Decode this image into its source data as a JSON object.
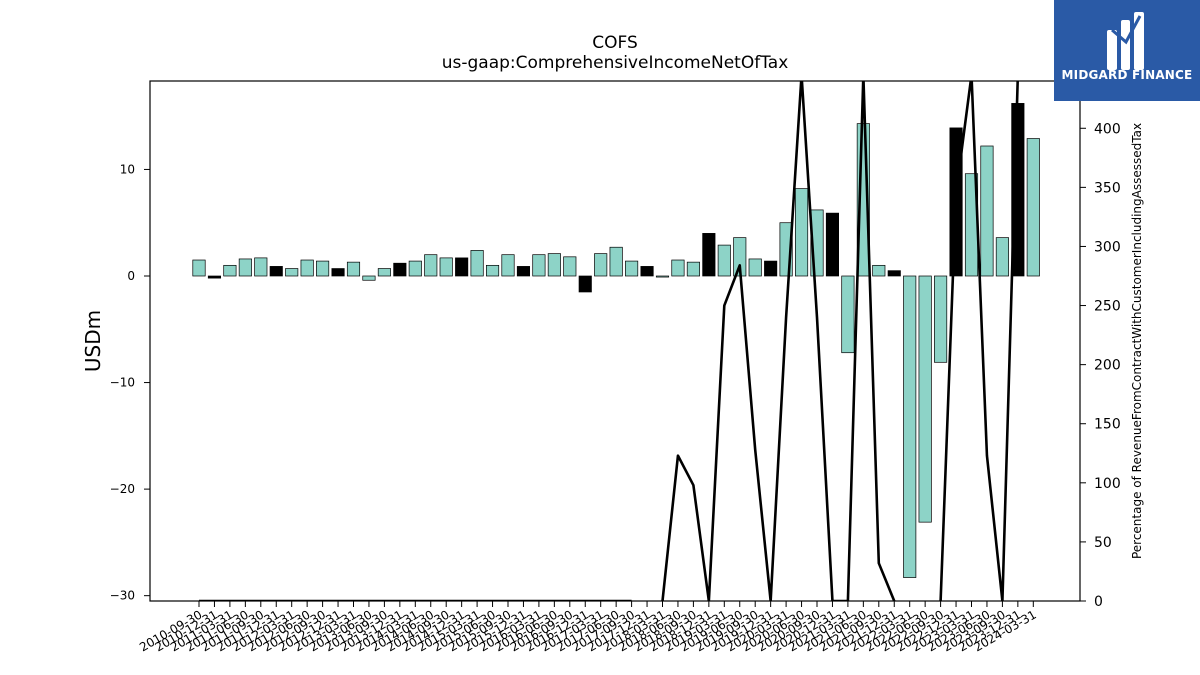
{
  "logo": {
    "text": "MIDGARD FINANCE"
  },
  "chart_data": {
    "type": "bar",
    "title": "COFS",
    "subtitle": "us-gaap:ComprehensiveIncomeNetOfTax",
    "ylabel": "USDm",
    "y2label": "Percentage of RevenueFromContractWithCustomerIncludingAssessedTax",
    "ylim": [
      -30.5,
      18.3
    ],
    "y2lim": [
      0,
      440
    ],
    "yticks": [
      -30,
      -20,
      -10,
      0,
      10
    ],
    "y2ticks": [
      0,
      50,
      100,
      150,
      200,
      250,
      300,
      350,
      400
    ],
    "categories": [
      "2010-09-30",
      "2010-12-31",
      "2011-03-31",
      "2011-06-30",
      "2011-09-30",
      "2011-12-31",
      "2012-03-31",
      "2012-06-30",
      "2012-09-30",
      "2012-12-31",
      "2013-03-31",
      "2013-06-30",
      "2013-09-30",
      "2013-12-31",
      "2014-03-31",
      "2014-06-30",
      "2014-09-30",
      "2014-12-31",
      "2015-03-31",
      "2015-06-30",
      "2015-09-30",
      "2015-12-31",
      "2016-03-31",
      "2016-06-30",
      "2016-09-30",
      "2016-12-31",
      "2017-03-31",
      "2017-06-30",
      "2017-09-30",
      "2017-12-31",
      "2018-03-31",
      "2018-06-30",
      "2018-09-30",
      "2018-12-31",
      "2019-03-31",
      "2019-06-30",
      "2019-09-30",
      "2019-12-31",
      "2020-03-31",
      "2020-06-30",
      "2020-09-30",
      "2020-12-31",
      "2021-03-31",
      "2021-06-30",
      "2021-09-30",
      "2021-12-31",
      "2022-03-31",
      "2022-06-30",
      "2022-09-30",
      "2022-12-31",
      "2023-03-31",
      "2023-06-30",
      "2023-09-30",
      "2023-12-31",
      "2024-03-31"
    ],
    "series": [
      {
        "type": "bar",
        "values": [
          1.5,
          -0.2,
          1.0,
          1.6,
          1.7,
          0.9,
          0.7,
          1.5,
          1.4,
          0.7,
          1.3,
          -0.4,
          0.7,
          1.2,
          1.4,
          2.0,
          1.7,
          1.7,
          2.4,
          1.0,
          2.0,
          0.9,
          2.0,
          2.1,
          1.8,
          -1.5,
          2.1,
          2.7,
          1.4,
          0.9,
          -0.1,
          1.5,
          1.3,
          4.0,
          2.9,
          3.6,
          1.6,
          1.4,
          5.0,
          8.2,
          6.2,
          5.9,
          -7.2,
          14.3,
          1.0,
          0.5,
          -28.3,
          -23.1,
          -8.1,
          13.9,
          9.6,
          12.2,
          3.6,
          16.2,
          12.9
        ],
        "colors": [
          "#8dd3c7",
          "#000000",
          "#8dd3c7",
          "#8dd3c7",
          "#8dd3c7",
          "#000000",
          "#8dd3c7",
          "#8dd3c7",
          "#8dd3c7",
          "#000000",
          "#8dd3c7",
          "#8dd3c7",
          "#8dd3c7",
          "#000000",
          "#8dd3c7",
          "#8dd3c7",
          "#8dd3c7",
          "#000000",
          "#8dd3c7",
          "#8dd3c7",
          "#8dd3c7",
          "#000000",
          "#8dd3c7",
          "#8dd3c7",
          "#8dd3c7",
          "#000000",
          "#8dd3c7",
          "#8dd3c7",
          "#8dd3c7",
          "#000000",
          "#8dd3c7",
          "#8dd3c7",
          "#8dd3c7",
          "#000000",
          "#8dd3c7",
          "#8dd3c7",
          "#8dd3c7",
          "#000000",
          "#8dd3c7",
          "#8dd3c7",
          "#8dd3c7",
          "#000000",
          "#8dd3c7",
          "#8dd3c7",
          "#8dd3c7",
          "#000000",
          "#8dd3c7",
          "#8dd3c7",
          "#8dd3c7",
          "#000000",
          "#8dd3c7",
          "#8dd3c7",
          "#8dd3c7",
          "#000000",
          "#8dd3c7"
        ],
        "axis": "left"
      },
      {
        "type": "line",
        "axis": "right",
        "color": "#000000",
        "values": [
          0,
          0,
          0,
          0,
          0,
          0,
          0,
          0,
          0,
          0,
          0,
          0,
          0,
          0,
          0,
          0,
          0,
          0,
          0,
          0,
          0,
          0,
          0,
          0,
          0,
          0,
          0,
          0,
          0,
          null,
          0,
          123,
          98,
          0,
          250,
          284,
          128,
          0,
          240,
          445,
          240,
          0,
          0,
          445,
          32,
          0,
          null,
          null,
          0,
          345,
          445,
          123,
          0,
          445,
          null
        ]
      }
    ]
  }
}
